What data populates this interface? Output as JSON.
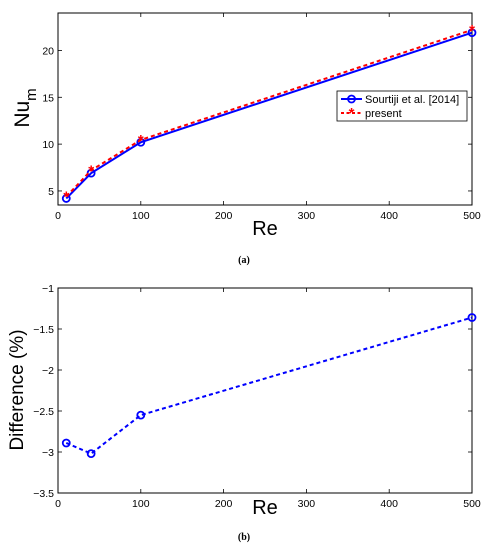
{
  "chart_data": [
    {
      "type": "line",
      "caption": "(a)",
      "xlabel": "Re",
      "ylabel_main": "Nu",
      "ylabel_sub": "m",
      "xlim": [
        0,
        500
      ],
      "ylim": [
        3.5,
        24
      ],
      "xticks": [
        0,
        100,
        200,
        300,
        400,
        500
      ],
      "yticks": [
        5,
        10,
        15,
        20
      ],
      "grid": false,
      "legend_position": "right-middle",
      "x": [
        10,
        40,
        100,
        500
      ],
      "series": [
        {
          "name": "Sourtiji et al. [2014]",
          "values": [
            4.2,
            6.9,
            10.2,
            21.9
          ],
          "color": "#0000ff",
          "line": "solid",
          "marker": "circle"
        },
        {
          "name": "present",
          "values": [
            4.4,
            7.2,
            10.45,
            22.2
          ],
          "color": "#ff0000",
          "line": "dashed",
          "marker": "asterisk"
        }
      ]
    },
    {
      "type": "line",
      "caption": "(b)",
      "xlabel": "Re",
      "ylabel": "Difference (%)",
      "xlim": [
        0,
        500
      ],
      "ylim": [
        -3.5,
        -1
      ],
      "xticks": [
        0,
        100,
        200,
        300,
        400,
        500
      ],
      "yticks": [
        -3.5,
        -3,
        -2.5,
        -2,
        -1.5,
        -1
      ],
      "grid": false,
      "x": [
        10,
        40,
        100,
        500
      ],
      "series": [
        {
          "values": [
            -2.89,
            -3.02,
            -2.55,
            -1.36
          ],
          "color": "#0000ff",
          "line": "dashed",
          "marker": "circle"
        }
      ]
    }
  ]
}
